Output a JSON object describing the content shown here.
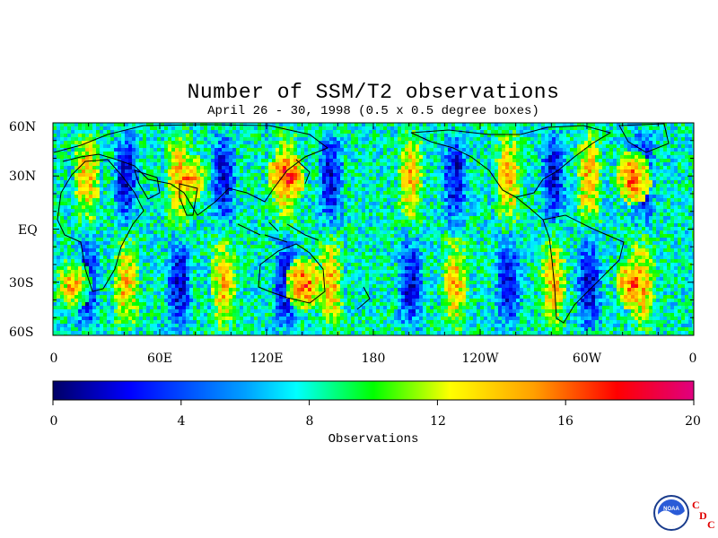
{
  "title": "Number of SSM/T2 observations",
  "subtitle": "April 26 - 30, 1998 (0.5 x 0.5 degree boxes)",
  "lat_labels": [
    "60N",
    "30N",
    "EQ",
    "30S",
    "60S"
  ],
  "lon_labels": [
    "0",
    "60E",
    "120E",
    "180",
    "120W",
    "60W",
    "0"
  ],
  "colorbar": {
    "ticks": [
      "0",
      "4",
      "8",
      "12",
      "16",
      "20"
    ],
    "label": "Observations",
    "colors": [
      "#000066",
      "#0000ff",
      "#00a0ff",
      "#00ffff",
      "#00ff00",
      "#ffff00",
      "#ffa000",
      "#ff0000",
      "#e00080"
    ]
  },
  "chart_data": {
    "type": "heatmap",
    "title": "Number of SSM/T2 observations",
    "subtitle": "April 26 - 30, 1998 (0.5 x 0.5 degree boxes)",
    "x_range_deg_east": [
      0,
      360
    ],
    "y_range_deg": [
      -60,
      60
    ],
    "value_range": [
      0,
      20
    ],
    "colorbar_label": "Observations",
    "swath_bands_approx_lon_east": [
      18,
      40,
      70,
      95,
      130,
      155,
      200,
      225,
      255,
      280,
      300,
      330
    ],
    "peak_regions": [
      {
        "lat": "30N",
        "lon": "~130E",
        "value": 18
      },
      {
        "lat": "30N",
        "lon": "~75E",
        "value": 16
      },
      {
        "lat": "30N",
        "lon": "~35W",
        "value": 17
      },
      {
        "lat": "30S",
        "lon": "~140E",
        "value": 17
      },
      {
        "lat": "30S",
        "lon": "~35W",
        "value": 17
      },
      {
        "lat": "30S",
        "lon": "~10E",
        "value": 15
      }
    ],
    "background_value": 8
  },
  "logo": {
    "icon": "noaa-logo-icon",
    "text": "NOAA",
    "letters": [
      "C",
      "D",
      "C"
    ]
  }
}
